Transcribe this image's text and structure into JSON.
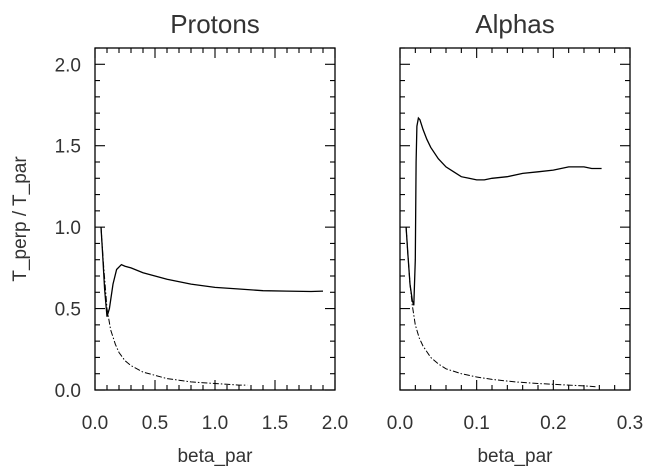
{
  "chart_data": [
    {
      "type": "line",
      "title": "Protons",
      "xlabel": "beta_par",
      "ylabel": "T_perp / T_par",
      "xlim": [
        0.0,
        2.0
      ],
      "ylim": [
        0.0,
        2.1
      ],
      "xticks": [
        "0.0",
        "0.5",
        "1.0",
        "1.5",
        "2.0"
      ],
      "yticks": [
        "0.0",
        "0.5",
        "1.0",
        "1.5",
        "2.0"
      ],
      "series": [
        {
          "style": "solid",
          "x": [
            0.05,
            0.06,
            0.08,
            0.1,
            0.12,
            0.15,
            0.18,
            0.22,
            0.25,
            0.3,
            0.4,
            0.5,
            0.6,
            0.8,
            1.0,
            1.2,
            1.4,
            1.6,
            1.8,
            1.9
          ],
          "y": [
            1.0,
            0.88,
            0.62,
            0.45,
            0.5,
            0.65,
            0.74,
            0.77,
            0.76,
            0.75,
            0.72,
            0.7,
            0.68,
            0.65,
            0.63,
            0.62,
            0.61,
            0.607,
            0.605,
            0.607
          ]
        },
        {
          "style": "dash-dot",
          "x": [
            0.05,
            0.07,
            0.1,
            0.13,
            0.17,
            0.2,
            0.25,
            0.3,
            0.4,
            0.5,
            0.6,
            0.7,
            0.8,
            0.9,
            1.0,
            1.1,
            1.2,
            1.27
          ],
          "y": [
            1.0,
            0.78,
            0.5,
            0.37,
            0.28,
            0.23,
            0.18,
            0.15,
            0.11,
            0.09,
            0.07,
            0.06,
            0.05,
            0.045,
            0.04,
            0.035,
            0.03,
            0.03
          ]
        }
      ]
    },
    {
      "type": "line",
      "title": "Alphas",
      "xlabel": "beta_par",
      "xlim": [
        0.0,
        0.3
      ],
      "ylim": [
        0.0,
        2.1
      ],
      "xticks": [
        "0.0",
        "0.1",
        "0.2",
        "0.3"
      ],
      "yticks": [],
      "series": [
        {
          "style": "solid",
          "x": [
            0.008,
            0.01,
            0.013,
            0.016,
            0.018,
            0.02,
            0.021,
            0.022,
            0.024,
            0.026,
            0.03,
            0.035,
            0.04,
            0.05,
            0.06,
            0.07,
            0.08,
            0.09,
            0.1,
            0.11,
            0.12,
            0.14,
            0.16,
            0.18,
            0.2,
            0.22,
            0.24,
            0.25,
            0.263
          ],
          "y": [
            1.0,
            0.85,
            0.65,
            0.55,
            0.52,
            0.8,
            1.4,
            1.62,
            1.67,
            1.66,
            1.6,
            1.54,
            1.49,
            1.42,
            1.37,
            1.34,
            1.31,
            1.3,
            1.29,
            1.29,
            1.3,
            1.31,
            1.33,
            1.34,
            1.35,
            1.37,
            1.37,
            1.36,
            1.36
          ]
        },
        {
          "style": "dash-dot",
          "x": [
            0.008,
            0.01,
            0.013,
            0.016,
            0.02,
            0.025,
            0.03,
            0.04,
            0.05,
            0.06,
            0.08,
            0.1,
            0.12,
            0.15,
            0.18,
            0.2,
            0.22,
            0.24,
            0.255
          ],
          "y": [
            1.0,
            0.85,
            0.65,
            0.52,
            0.4,
            0.32,
            0.27,
            0.2,
            0.16,
            0.13,
            0.1,
            0.08,
            0.065,
            0.05,
            0.04,
            0.035,
            0.03,
            0.025,
            0.02
          ]
        }
      ]
    }
  ]
}
